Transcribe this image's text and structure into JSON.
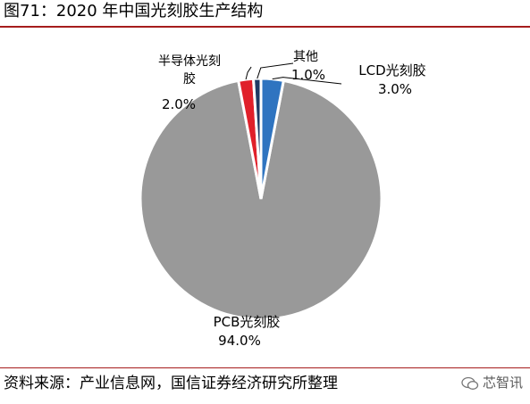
{
  "header": {
    "title": "图71：2020 年中国光刻胶生产结构"
  },
  "footer": {
    "source": "资料来源：产业信息网，国信证券经济研究所整理",
    "watermark": "芯智讯"
  },
  "chart_data": {
    "type": "pie",
    "title": "",
    "slices": [
      {
        "label": "PCB光刻胶",
        "value": 94.0,
        "value_label": "94.0%",
        "color": "#999999"
      },
      {
        "label": "半导体光刻胶",
        "value": 2.0,
        "value_label": "2.0%",
        "color": "#e0202a"
      },
      {
        "label": "其他",
        "value": 1.0,
        "value_label": "1.0%",
        "color": "#1f3a64"
      },
      {
        "label": "LCD光刻胶",
        "value": 3.0,
        "value_label": "3.0%",
        "color": "#2f74c0"
      }
    ]
  }
}
